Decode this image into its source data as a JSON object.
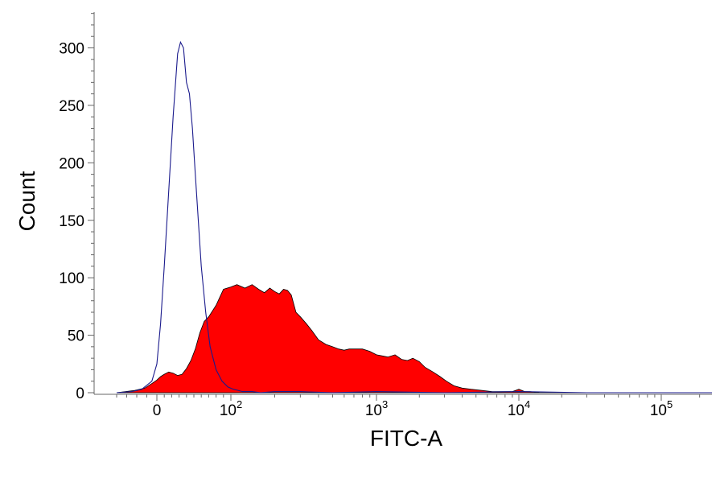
{
  "chart_data": {
    "type": "area",
    "title": "",
    "xlabel": "FITC-A",
    "ylabel": "Count",
    "x_scale": "biexponential",
    "x_ticks": [
      {
        "value": 0,
        "base": "0",
        "exp": ""
      },
      {
        "value": 100,
        "base": "10",
        "exp": "2"
      },
      {
        "value": 1000,
        "base": "10",
        "exp": "3"
      },
      {
        "value": 10000,
        "base": "10",
        "exp": "4"
      },
      {
        "value": 100000,
        "base": "10",
        "exp": "5"
      }
    ],
    "y_ticks": [
      0,
      50,
      100,
      150,
      200,
      250,
      300
    ],
    "ylim": [
      0,
      335
    ],
    "grid": false,
    "legend": "none",
    "colors": {
      "filled": "#ff0000",
      "outline": "#1a1a8c",
      "axis": "#666666"
    },
    "series": [
      {
        "style": "filled",
        "x": [
          -40,
          -22,
          -12,
          -5,
          0,
          5,
          10,
          16,
          22,
          28,
          34,
          40,
          46,
          52,
          58,
          64,
          70,
          80,
          90,
          100,
          110,
          125,
          140,
          155,
          170,
          185,
          200,
          215,
          230,
          245,
          260,
          280,
          300,
          330,
          360,
          400,
          450,
          500,
          550,
          600,
          650,
          700,
          800,
          900,
          1000,
          1100,
          1200,
          1350,
          1500,
          1650,
          1800,
          2000,
          2200,
          2500,
          2800,
          3100,
          3500,
          4000,
          4600,
          5500,
          6500,
          8000,
          9000,
          10000,
          11000,
          12000,
          14000,
          20000,
          30000,
          50000,
          100000,
          250000
        ],
        "y": [
          0,
          2,
          4,
          8,
          11,
          14,
          16,
          18,
          17,
          15,
          16,
          21,
          28,
          38,
          52,
          62,
          66,
          76,
          90,
          92,
          94,
          91,
          94,
          90,
          87,
          91,
          88,
          86,
          90,
          89,
          85,
          70,
          66,
          60,
          54,
          46,
          42,
          40,
          38,
          37,
          38,
          38,
          38,
          36,
          33,
          32,
          31,
          33,
          29,
          28,
          30,
          27,
          22,
          18,
          14,
          10,
          6,
          4,
          3,
          2,
          1,
          1,
          1,
          3,
          1,
          1,
          0,
          0,
          0,
          0,
          0,
          0
        ]
      },
      {
        "style": "outline",
        "x": [
          -40,
          -25,
          -15,
          -5,
          0,
          5,
          10,
          16,
          22,
          28,
          32,
          36,
          40,
          44,
          48,
          52,
          56,
          60,
          66,
          72,
          80,
          88,
          96,
          104,
          112,
          120,
          140,
          160,
          200,
          300,
          500,
          1000,
          3000,
          10000,
          30000,
          100000,
          250000
        ],
        "y": [
          0,
          1,
          3,
          10,
          25,
          60,
          110,
          175,
          240,
          295,
          305,
          300,
          270,
          260,
          230,
          190,
          150,
          110,
          70,
          40,
          20,
          10,
          5,
          3,
          2,
          1,
          1,
          0,
          1,
          1,
          0,
          1,
          0,
          1,
          0,
          0,
          0
        ]
      }
    ]
  }
}
